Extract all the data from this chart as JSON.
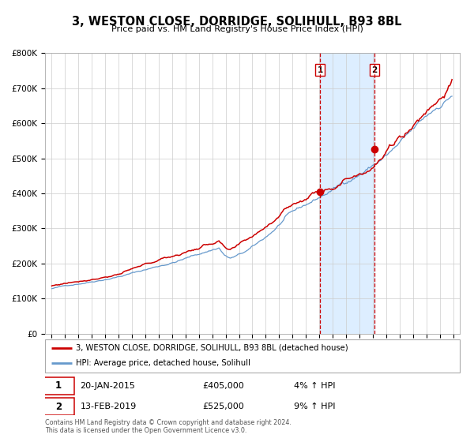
{
  "title": "3, WESTON CLOSE, DORRIDGE, SOLIHULL, B93 8BL",
  "subtitle": "Price paid vs. HM Land Registry's House Price Index (HPI)",
  "ylim": [
    0,
    800000
  ],
  "yticks": [
    0,
    100000,
    200000,
    300000,
    400000,
    500000,
    600000,
    700000,
    800000
  ],
  "ytick_labels": [
    "£0",
    "£100K",
    "£200K",
    "£300K",
    "£400K",
    "£500K",
    "£600K",
    "£700K",
    "£800K"
  ],
  "year_start": 1995,
  "year_end": 2025,
  "xlim_start": 1994.5,
  "xlim_end": 2025.5,
  "transaction1_date": 2015.05,
  "transaction1_price": 405000,
  "transaction1_label": "1",
  "transaction1_text": "20-JAN-2015",
  "transaction1_amount": "£405,000",
  "transaction1_hpi": "4% ↑ HPI",
  "transaction2_date": 2019.12,
  "transaction2_price": 525000,
  "transaction2_label": "2",
  "transaction2_text": "13-FEB-2019",
  "transaction2_amount": "£525,000",
  "transaction2_hpi": "9% ↑ HPI",
  "red_line_color": "#cc0000",
  "blue_line_color": "#6699cc",
  "shade_color": "#ddeeff",
  "vline_color": "#cc0000",
  "grid_color": "#cccccc",
  "bg_color": "#ffffff",
  "legend_line1": "3, WESTON CLOSE, DORRIDGE, SOLIHULL, B93 8BL (detached house)",
  "legend_line2": "HPI: Average price, detached house, Solihull",
  "footer": "Contains HM Land Registry data © Crown copyright and database right 2024.\nThis data is licensed under the Open Government Licence v3.0."
}
